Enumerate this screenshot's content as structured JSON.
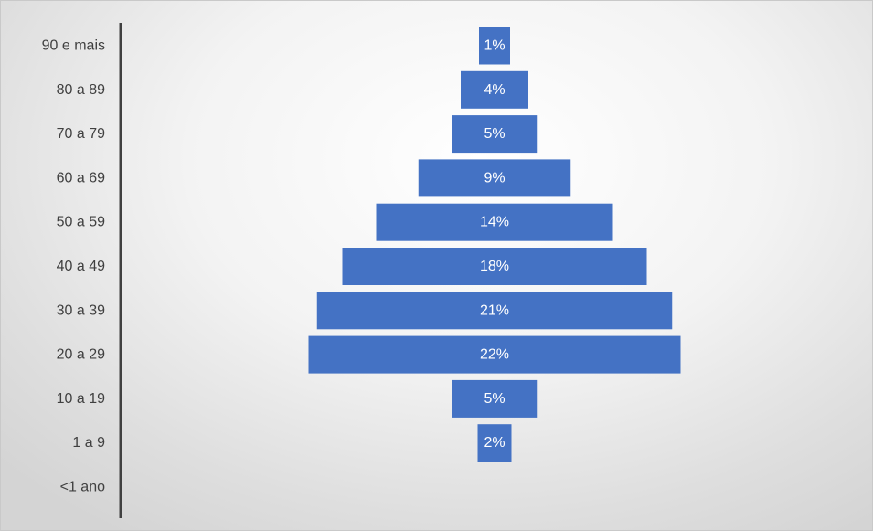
{
  "chart_data": {
    "type": "bar",
    "orientation": "horizontal",
    "layout": "centered-pyramid",
    "categories": [
      "90 e mais",
      "80 a 89",
      "70 a 79",
      "60 a 69",
      "50 a 59",
      "40 a 49",
      "30 a 39",
      "20 a 29",
      "10 a 19",
      "1 a 9",
      "<1 ano"
    ],
    "values": [
      1,
      4,
      5,
      9,
      14,
      18,
      21,
      22,
      5,
      2,
      0
    ],
    "data_labels": [
      "1%",
      "4%",
      "5%",
      "9%",
      "14%",
      "18%",
      "21%",
      "22%",
      "5%",
      "2%",
      ""
    ],
    "unit": "%",
    "bar_color": "#4472c4",
    "axis_color": "#404040",
    "title": "",
    "xlabel": "",
    "ylabel": "",
    "grid": false,
    "legend": "none"
  }
}
